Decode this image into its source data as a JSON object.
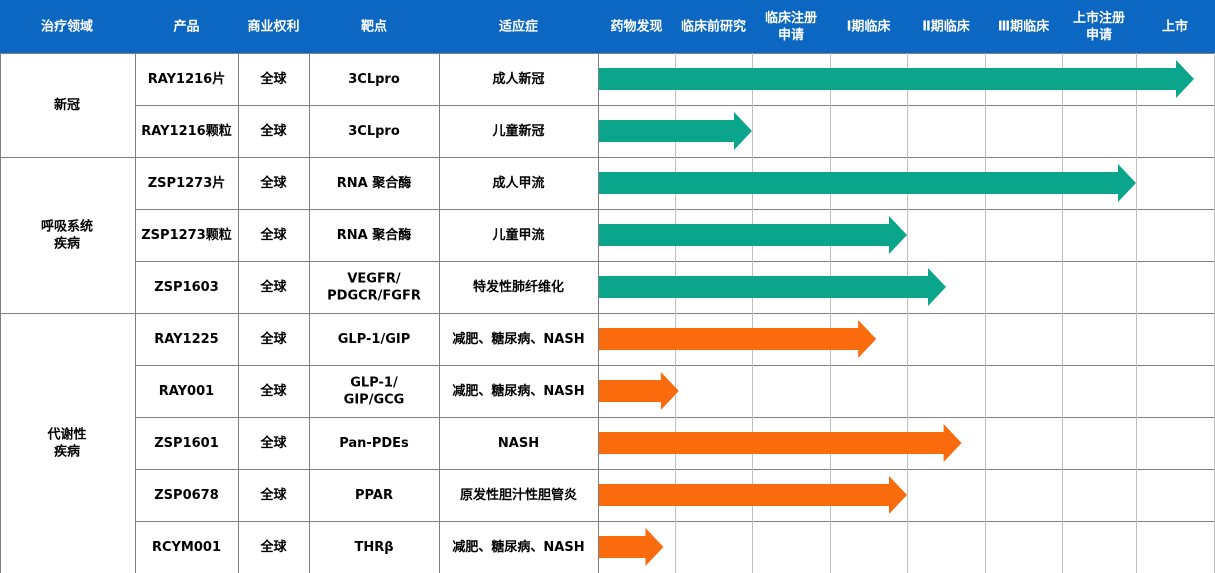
{
  "colors": {
    "header_bg": "#0b67c2",
    "antiviral": "#0aa58a",
    "metabolic": "#f96b0d"
  },
  "headers": {
    "area": "治疗领域",
    "product": "产品",
    "rights": "商业权利",
    "target": "靶点",
    "indication": "适应症",
    "stages": [
      "药物发现",
      "临床前研究",
      "临床注册\n申请",
      "Ⅰ期临床",
      "Ⅱ期临床",
      "Ⅲ期临床",
      "上市注册\n申请",
      "上市"
    ]
  },
  "groups": [
    {
      "area": "新冠",
      "rows": 2
    },
    {
      "area": "呼吸系统\n疾病",
      "rows": 3
    },
    {
      "area": "代谢性\n疾病",
      "rows": 5
    }
  ],
  "chart_data": {
    "type": "table",
    "stage_scale": "0 = 药物发现 start … 8 = 上市 end (fraction of stage columns spanned by arrow)",
    "rows": [
      {
        "product": "RAY1216片",
        "rights": "全球",
        "target": "3CLpro",
        "indication": "成人新冠",
        "progress": 8.0,
        "color": "antiviral"
      },
      {
        "product": "RAY1216颗粒",
        "rights": "全球",
        "target": "3CLpro",
        "indication": "儿童新冠",
        "progress": 2.0,
        "color": "antiviral"
      },
      {
        "product": "ZSP1273片",
        "rights": "全球",
        "target": "RNA 聚合酶",
        "indication": "成人甲流",
        "progress": 7.0,
        "color": "antiviral"
      },
      {
        "product": "ZSP1273颗粒",
        "rights": "全球",
        "target": "RNA 聚合酶",
        "indication": "儿童甲流",
        "progress": 4.0,
        "color": "antiviral"
      },
      {
        "product": "ZSP1603",
        "rights": "全球",
        "target": "VEGFR/\nPDGCR/FGFR",
        "indication": "特发性肺纤维化",
        "progress": 4.5,
        "color": "antiviral"
      },
      {
        "product": "RAY1225",
        "rights": "全球",
        "target": "GLP-1/GIP",
        "indication": "减肥、糖尿病、NASH",
        "progress": 3.6,
        "color": "metabolic"
      },
      {
        "product": "RAY001",
        "rights": "全球",
        "target": "GLP-1/\nGIP/GCG",
        "indication": "减肥、糖尿病、NASH",
        "progress": 1.05,
        "color": "metabolic"
      },
      {
        "product": "ZSP1601",
        "rights": "全球",
        "target": "Pan-PDEs",
        "indication": "NASH",
        "progress": 4.7,
        "color": "metabolic"
      },
      {
        "product": "ZSP0678",
        "rights": "全球",
        "target": "PPAR",
        "indication": "原发性胆汁性胆管炎",
        "progress": 4.0,
        "color": "metabolic"
      },
      {
        "product": "RCYM001",
        "rights": "全球",
        "target": "THRβ",
        "indication": "减肥、糖尿病、NASH",
        "progress": 0.85,
        "color": "metabolic"
      }
    ]
  }
}
